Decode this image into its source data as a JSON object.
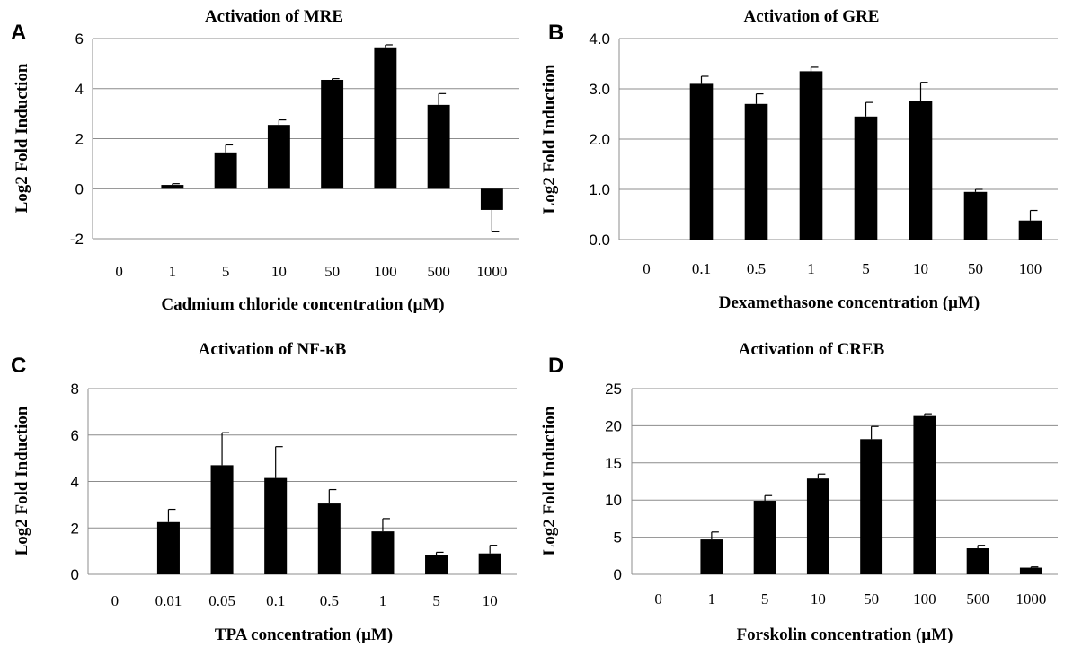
{
  "chart_data": [
    {
      "panel_label": "A",
      "type": "bar",
      "title": "Activation of MRE",
      "xlabel": "Cadmium chloride concentration (μM)",
      "ylabel": "Log2 Fold Induction",
      "categories": [
        "0",
        "1",
        "5",
        "10",
        "50",
        "100",
        "500",
        "1000"
      ],
      "values": [
        0,
        0.15,
        1.45,
        2.55,
        4.35,
        5.65,
        3.35,
        -0.85
      ],
      "errors": [
        0,
        0.05,
        0.3,
        0.2,
        0.05,
        0.1,
        0.45,
        0.85
      ],
      "ylim": [
        -2,
        6
      ],
      "yticks": [
        -2,
        0,
        2,
        4,
        6
      ],
      "ytick_labels": [
        "-2",
        "0",
        "2",
        "4",
        "6"
      ],
      "grid": true,
      "bar_color": "#000000"
    },
    {
      "panel_label": "B",
      "type": "bar",
      "title": "Activation of GRE",
      "xlabel": "Dexamethasone concentration (μM)",
      "ylabel": "Log2 Fold Induction",
      "categories": [
        "0",
        "0.1",
        "0.5",
        "1",
        "5",
        "10",
        "50",
        "100"
      ],
      "values": [
        0,
        3.1,
        2.7,
        3.35,
        2.45,
        2.75,
        0.95,
        0.38
      ],
      "errors": [
        0,
        0.15,
        0.2,
        0.08,
        0.28,
        0.38,
        0.05,
        0.2
      ],
      "ylim": [
        0,
        4
      ],
      "yticks": [
        0,
        1,
        2,
        3,
        4
      ],
      "ytick_labels": [
        "0.0",
        "1.0",
        "2.0",
        "3.0",
        "4.0"
      ],
      "grid": true,
      "bar_color": "#000000"
    },
    {
      "panel_label": "C",
      "type": "bar",
      "title": "Activation of NF-κB",
      "xlabel": "TPA concentration (μM)",
      "ylabel": "Log2 Fold Induction",
      "categories": [
        "0",
        "0.01",
        "0.05",
        "0.1",
        "0.5",
        "1",
        "5",
        "10"
      ],
      "values": [
        0,
        2.25,
        4.7,
        4.15,
        3.05,
        1.85,
        0.85,
        0.9
      ],
      "errors": [
        0,
        0.55,
        1.4,
        1.35,
        0.6,
        0.55,
        0.1,
        0.35
      ],
      "ylim": [
        0,
        8
      ],
      "yticks": [
        0,
        2,
        4,
        6,
        8
      ],
      "ytick_labels": [
        "0",
        "2",
        "4",
        "6",
        "8"
      ],
      "grid": true,
      "bar_color": "#000000"
    },
    {
      "panel_label": "D",
      "type": "bar",
      "title": "Activation of CREB",
      "xlabel": "Forskolin concentration (μM)",
      "ylabel": "Log2 Fold Induction",
      "categories": [
        "0",
        "1",
        "5",
        "10",
        "50",
        "100",
        "500",
        "1000"
      ],
      "values": [
        0,
        4.7,
        9.9,
        12.9,
        18.2,
        21.3,
        3.5,
        0.9
      ],
      "errors": [
        0,
        1.0,
        0.7,
        0.6,
        1.7,
        0.3,
        0.4,
        0.1
      ],
      "ylim": [
        0,
        25
      ],
      "yticks": [
        0,
        5,
        10,
        15,
        20,
        25
      ],
      "ytick_labels": [
        "0",
        "5",
        "10",
        "15",
        "20",
        "25"
      ],
      "grid": true,
      "bar_color": "#000000"
    }
  ]
}
